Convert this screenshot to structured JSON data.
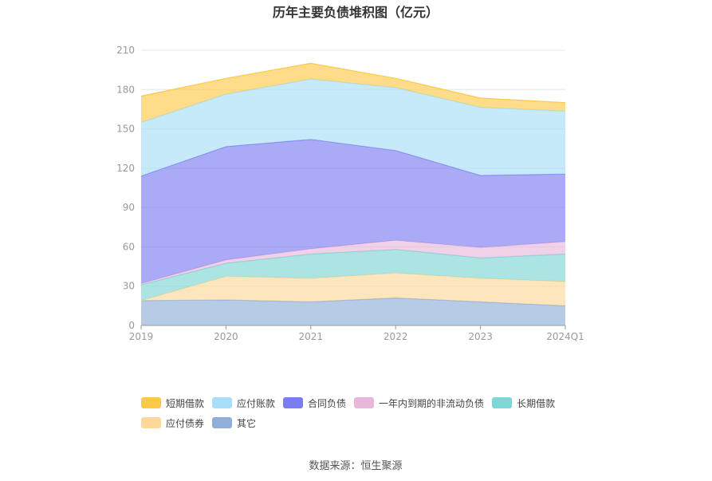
{
  "chart_data": {
    "type": "area",
    "stacked": true,
    "title": "历年主要负债堆积图（亿元）",
    "categories": [
      "2019",
      "2020",
      "2021",
      "2022",
      "2023",
      "2024Q1"
    ],
    "ylim": [
      0,
      210
    ],
    "yticks": [
      "0",
      "30",
      "60",
      "90",
      "120",
      "150",
      "180",
      "210"
    ],
    "grid": true,
    "legend_position": "bottom",
    "series": [
      {
        "name": "其它",
        "color": "#8fafd9",
        "values": [
          19,
          19.5,
          18,
          21,
          18,
          15
        ]
      },
      {
        "name": "应付债券",
        "color": "#fcd99a",
        "values": [
          0,
          18,
          18,
          19,
          18,
          18.5
        ]
      },
      {
        "name": "长期借款",
        "color": "#7fd6d6",
        "values": [
          12,
          10,
          18.5,
          18,
          15.5,
          21
        ]
      },
      {
        "name": "一年内到期的非流动负债",
        "color": "#e7b8db",
        "values": [
          1,
          2.5,
          4,
          7,
          8,
          9.5
        ]
      },
      {
        "name": "合同负债",
        "color": "#7c7cf2",
        "values": [
          82,
          86.5,
          83.5,
          68.5,
          55,
          51.5
        ]
      },
      {
        "name": "应付账款",
        "color": "#a8def8",
        "values": [
          41,
          40,
          46,
          48,
          52,
          48
        ]
      },
      {
        "name": "短期借款",
        "color": "#fdc94a",
        "values": [
          20,
          12,
          12,
          7,
          7,
          6.5
        ]
      }
    ]
  },
  "legend": {
    "items": [
      {
        "label": "短期借款",
        "color": "#fdc94a"
      },
      {
        "label": "应付账款",
        "color": "#a8def8"
      },
      {
        "label": "合同负债",
        "color": "#7c7cf2"
      },
      {
        "label": "一年内到期的非流动负债",
        "color": "#e7b8db"
      },
      {
        "label": "长期借款",
        "color": "#7fd6d6"
      },
      {
        "label": "应付债券",
        "color": "#fcd99a"
      },
      {
        "label": "其它",
        "color": "#8fafd9"
      }
    ]
  },
  "source": "数据来源：恒生聚源"
}
